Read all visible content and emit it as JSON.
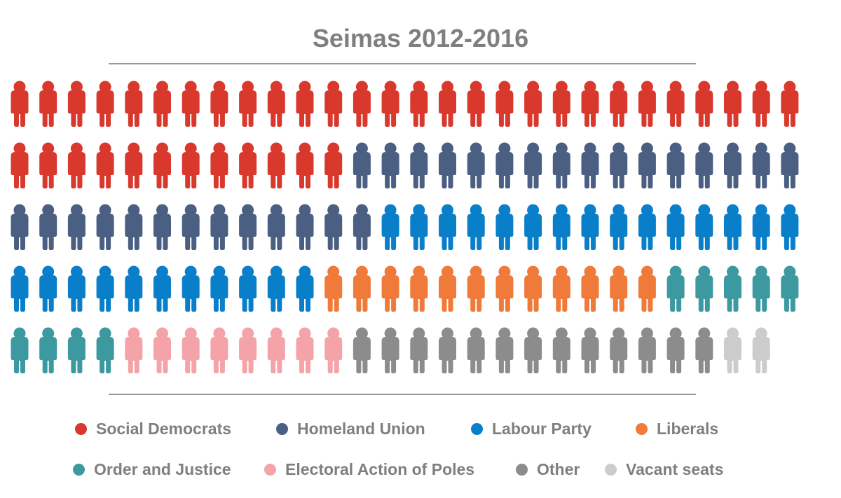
{
  "chart_data": {
    "type": "pictogram",
    "title": "Seimas 2012-2016",
    "columns": 28,
    "series": [
      {
        "name": "Social Democrats",
        "value": 40,
        "color": "#d9382c"
      },
      {
        "name": "Homeland Union",
        "value": 29,
        "color": "#4a5f82"
      },
      {
        "name": "Labour Party",
        "value": 26,
        "color": "#0a7fc9"
      },
      {
        "name": "Liberals",
        "value": 12,
        "color": "#f07a3a"
      },
      {
        "name": "Order and Justice",
        "value": 9,
        "color": "#3c99a0"
      },
      {
        "name": "Electoral Action of Poles",
        "value": 8,
        "color": "#f4a3a8"
      },
      {
        "name": "Other",
        "value": 13,
        "color": "#8c8c8c"
      },
      {
        "name": "Vacant seats",
        "value": 2,
        "color": "#cccccc"
      }
    ]
  }
}
